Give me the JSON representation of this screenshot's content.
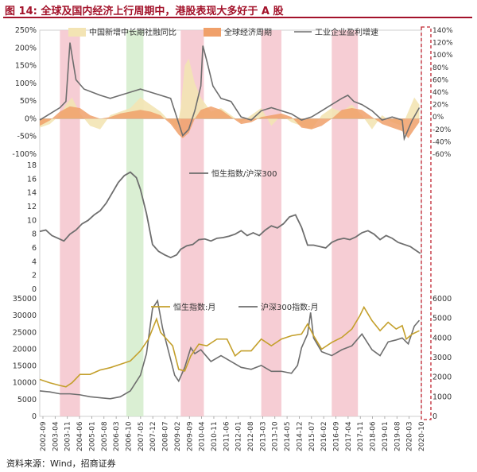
{
  "figure": {
    "label": "图 14:",
    "title": "全球及国内经济上行周期中，港股表现大多好于 A 股",
    "source": "资料来源：Wind，招商证券"
  },
  "colors": {
    "brand": "#a3122a",
    "shade_red": "#f4c4cc",
    "shade_green": "#d3eccb",
    "credit_fill": "#f3e4b4",
    "cycle_fill": "#f0a06a",
    "profit_line": "#6e6e6e",
    "ratio_line": "#6e6e6e",
    "hsi_line": "#c4a02c",
    "csi_line": "#6e6e6e",
    "dash_box": "#c0242f"
  },
  "chart_data": [
    {
      "type": "area",
      "panel": "top",
      "x_ticks": [
        "2002-09",
        "2003-04",
        "2003-11",
        "2004-06",
        "2005-01",
        "2005-08",
        "2006-03",
        "2006-10",
        "2007-05",
        "2007-12",
        "2008-07",
        "2009-02",
        "2009-09",
        "2010-04",
        "2010-11",
        "2011-06",
        "2012-01",
        "2012-08",
        "2013-03",
        "2013-10",
        "2014-05",
        "2014-12",
        "2015-07",
        "2016-02",
        "2016-09",
        "2017-04",
        "2017-11",
        "2018-06",
        "2019-01",
        "2019-08",
        "2020-03",
        "2020-10"
      ],
      "left_axis": {
        "ylim": [
          -100,
          250
        ],
        "ticks": [
          "-100%",
          "-50%",
          "0%",
          "50%",
          "100%",
          "150%",
          "200%",
          "250%"
        ]
      },
      "right_axis": {
        "ylim": [
          -60,
          140
        ],
        "ticks": [
          "-60%",
          "-40%",
          "-20%",
          "0%",
          "20%",
          "40%",
          "60%",
          "80%",
          "100%",
          "120%",
          "140%"
        ]
      },
      "shaded_periods": [
        {
          "start": 2003.0,
          "end": 2004.0,
          "color": "red"
        },
        {
          "start": 2006.3,
          "end": 2007.15,
          "color": "green"
        },
        {
          "start": 2009.0,
          "end": 2010.15,
          "color": "red"
        },
        {
          "start": 2013.0,
          "end": 2014.0,
          "color": "red"
        },
        {
          "start": 2016.5,
          "end": 2017.8,
          "color": "red"
        }
      ],
      "series": [
        {
          "name": "中国新增中长期社融同比",
          "axis": "left",
          "style": "area",
          "x": [
            2002.0,
            2002.5,
            2003.0,
            2003.3,
            2003.6,
            2004.0,
            2004.5,
            2005.0,
            2005.5,
            2006.0,
            2006.5,
            2007.0,
            2007.5,
            2008.0,
            2008.5,
            2008.8,
            2009.0,
            2009.2,
            2009.4,
            2009.7,
            2010.0,
            2010.5,
            2011.0,
            2011.5,
            2012.0,
            2012.5,
            2013.0,
            2013.5,
            2014.0,
            2014.5,
            2015.0,
            2015.5,
            2016.0,
            2016.5,
            2017.0,
            2017.5,
            2018.0,
            2018.5,
            2019.0,
            2019.5,
            2020.0,
            2020.3,
            2020.6,
            2020.85
          ],
          "y": [
            -25,
            -15,
            10,
            40,
            60,
            15,
            -20,
            -30,
            10,
            20,
            30,
            60,
            40,
            20,
            -10,
            -30,
            30,
            150,
            170,
            100,
            60,
            20,
            30,
            10,
            -10,
            10,
            30,
            -20,
            10,
            -10,
            -20,
            -30,
            10,
            30,
            20,
            40,
            10,
            -30,
            10,
            -10,
            -20,
            20,
            60,
            40
          ]
        },
        {
          "name": "全球经济周期",
          "axis": "left",
          "style": "area",
          "x": [
            2002.0,
            2002.5,
            2003.0,
            2003.5,
            2004.0,
            2004.5,
            2005.0,
            2005.5,
            2006.0,
            2006.5,
            2007.0,
            2007.5,
            2008.0,
            2008.5,
            2008.9,
            2009.1,
            2009.4,
            2009.7,
            2010.0,
            2010.5,
            2011.0,
            2011.5,
            2012.0,
            2012.5,
            2013.0,
            2013.5,
            2014.0,
            2014.5,
            2015.0,
            2015.5,
            2016.0,
            2016.5,
            2017.0,
            2017.5,
            2018.0,
            2018.5,
            2019.0,
            2019.5,
            2020.0,
            2020.3,
            2020.6,
            2020.85
          ],
          "y": [
            -20,
            -5,
            20,
            35,
            30,
            10,
            0,
            5,
            15,
            20,
            25,
            20,
            10,
            -15,
            -45,
            -55,
            -40,
            0,
            25,
            35,
            25,
            5,
            -15,
            -10,
            5,
            10,
            15,
            5,
            -25,
            -30,
            -20,
            0,
            25,
            30,
            25,
            5,
            -15,
            -25,
            -35,
            -55,
            -30,
            -10
          ]
        },
        {
          "name": "工业企业盈利增速",
          "axis": "right",
          "style": "line",
          "x": [
            2002.0,
            2002.5,
            2003.0,
            2003.3,
            2003.5,
            2003.8,
            2004.2,
            2004.6,
            2005.0,
            2005.5,
            2006.0,
            2006.5,
            2007.0,
            2007.5,
            2008.0,
            2008.5,
            2008.9,
            2009.1,
            2009.4,
            2009.7,
            2010.0,
            2010.1,
            2010.3,
            2010.6,
            2011.0,
            2011.5,
            2012.0,
            2012.5,
            2013.0,
            2013.5,
            2014.0,
            2014.5,
            2015.0,
            2015.5,
            2016.0,
            2016.5,
            2017.0,
            2017.3,
            2017.6,
            2018.0,
            2018.5,
            2019.0,
            2019.5,
            2020.0,
            2020.1,
            2020.3,
            2020.5,
            2020.85
          ],
          "y": [
            -5,
            5,
            15,
            25,
            120,
            60,
            45,
            40,
            35,
            30,
            35,
            40,
            45,
            40,
            35,
            30,
            -10,
            -30,
            -20,
            10,
            50,
            115,
            90,
            50,
            30,
            25,
            0,
            -5,
            10,
            15,
            10,
            5,
            -5,
            0,
            10,
            20,
            30,
            35,
            25,
            20,
            10,
            -5,
            0,
            -5,
            -35,
            -20,
            -5,
            15
          ]
        }
      ]
    },
    {
      "type": "line",
      "panel": "middle",
      "ylim": [
        0,
        18
      ],
      "y_ticks": [
        "0",
        "2",
        "4",
        "6",
        "8",
        "10",
        "12",
        "14",
        "16",
        "18"
      ],
      "series": [
        {
          "name": "恒生指数/沪深300",
          "axis": "left",
          "x": [
            2002.0,
            2002.3,
            2002.6,
            2002.9,
            2003.2,
            2003.5,
            2003.8,
            2004.1,
            2004.4,
            2004.7,
            2005.0,
            2005.3,
            2005.6,
            2005.9,
            2006.2,
            2006.5,
            2006.8,
            2007.0,
            2007.3,
            2007.6,
            2007.9,
            2008.2,
            2008.5,
            2008.8,
            2009.0,
            2009.3,
            2009.6,
            2009.9,
            2010.2,
            2010.5,
            2010.8,
            2011.1,
            2011.4,
            2011.7,
            2012.0,
            2012.3,
            2012.6,
            2012.9,
            2013.2,
            2013.5,
            2013.8,
            2014.1,
            2014.4,
            2014.7,
            2015.0,
            2015.3,
            2015.6,
            2015.9,
            2016.2,
            2016.5,
            2016.8,
            2017.1,
            2017.4,
            2017.7,
            2018.0,
            2018.3,
            2018.6,
            2018.9,
            2019.2,
            2019.5,
            2019.8,
            2020.1,
            2020.4,
            2020.7,
            2020.9
          ],
          "y": [
            8.4,
            8.6,
            7.8,
            7.4,
            7.0,
            8.0,
            8.6,
            9.5,
            10.0,
            10.8,
            11.4,
            12.5,
            14.0,
            15.5,
            16.5,
            17.0,
            16.2,
            14.5,
            11.0,
            6.5,
            5.5,
            5.0,
            4.6,
            5.0,
            5.8,
            6.3,
            6.5,
            7.2,
            7.3,
            7.0,
            7.4,
            7.5,
            7.7,
            8.0,
            8.5,
            7.8,
            8.2,
            7.8,
            8.6,
            9.2,
            8.9,
            9.5,
            10.5,
            10.8,
            9.0,
            6.4,
            6.4,
            6.2,
            6.0,
            6.8,
            7.2,
            7.4,
            7.2,
            7.6,
            8.2,
            8.5,
            8.0,
            7.2,
            7.8,
            7.4,
            6.8,
            6.5,
            6.2,
            5.6,
            5.2
          ]
        }
      ]
    },
    {
      "type": "line",
      "panel": "bottom",
      "left_axis": {
        "ylim": [
          0,
          35000
        ],
        "ticks": [
          "0",
          "5000",
          "10000",
          "15000",
          "20000",
          "25000",
          "30000",
          "35000"
        ]
      },
      "right_axis": {
        "ylim": [
          0,
          6000
        ],
        "ticks": [
          "0",
          "1000",
          "2000",
          "3000",
          "4000",
          "5000",
          "6000"
        ]
      },
      "series": [
        {
          "name": "恒生指数:月",
          "axis": "left",
          "x": [
            2002.0,
            2002.5,
            2003.0,
            2003.3,
            2003.6,
            2004.0,
            2004.5,
            2005.0,
            2005.5,
            2006.0,
            2006.5,
            2007.0,
            2007.4,
            2007.8,
            2008.0,
            2008.3,
            2008.6,
            2008.9,
            2009.2,
            2009.5,
            2009.9,
            2010.3,
            2010.8,
            2011.3,
            2011.7,
            2012.0,
            2012.5,
            2013.0,
            2013.5,
            2014.0,
            2014.5,
            2015.0,
            2015.3,
            2015.6,
            2016.0,
            2016.5,
            2017.0,
            2017.5,
            2017.9,
            2018.1,
            2018.5,
            2018.9,
            2019.3,
            2019.7,
            2020.0,
            2020.2,
            2020.5,
            2020.85
          ],
          "y": [
            11000,
            10000,
            9200,
            8800,
            10000,
            12500,
            12500,
            13800,
            14500,
            15500,
            16500,
            19500,
            23000,
            29000,
            25000,
            23000,
            21000,
            14000,
            13500,
            18000,
            21500,
            21000,
            23000,
            23000,
            18000,
            19500,
            19500,
            23000,
            21000,
            23000,
            24000,
            24500,
            27500,
            24000,
            20000,
            22000,
            23500,
            26000,
            30000,
            32500,
            28500,
            25500,
            28000,
            26000,
            27000,
            23000,
            24500,
            25500
          ]
        },
        {
          "name": "沪深300指数:月",
          "axis": "right",
          "x": [
            2002.0,
            2002.5,
            2003.0,
            2003.5,
            2004.0,
            2004.5,
            2005.0,
            2005.5,
            2006.0,
            2006.5,
            2007.0,
            2007.3,
            2007.6,
            2007.85,
            2008.1,
            2008.4,
            2008.7,
            2008.9,
            2009.2,
            2009.5,
            2009.7,
            2010.0,
            2010.5,
            2011.0,
            2011.5,
            2012.0,
            2012.5,
            2013.0,
            2013.5,
            2014.0,
            2014.5,
            2014.8,
            2015.0,
            2015.3,
            2015.45,
            2015.6,
            2016.0,
            2016.5,
            2017.0,
            2017.5,
            2018.0,
            2018.5,
            2018.9,
            2019.3,
            2019.7,
            2020.0,
            2020.3,
            2020.6,
            2020.85
          ],
          "y": [
            1300,
            1250,
            1150,
            1150,
            1100,
            1000,
            950,
            900,
            1000,
            1300,
            2100,
            3200,
            5500,
            5900,
            4500,
            3300,
            2100,
            1800,
            2500,
            3500,
            3200,
            3400,
            2800,
            3100,
            2800,
            2500,
            2400,
            2600,
            2300,
            2300,
            2200,
            2600,
            3500,
            4200,
            5300,
            4000,
            3300,
            3100,
            3400,
            3600,
            4200,
            3400,
            3100,
            3800,
            3900,
            4000,
            3700,
            4600,
            4900
          ]
        }
      ]
    }
  ]
}
